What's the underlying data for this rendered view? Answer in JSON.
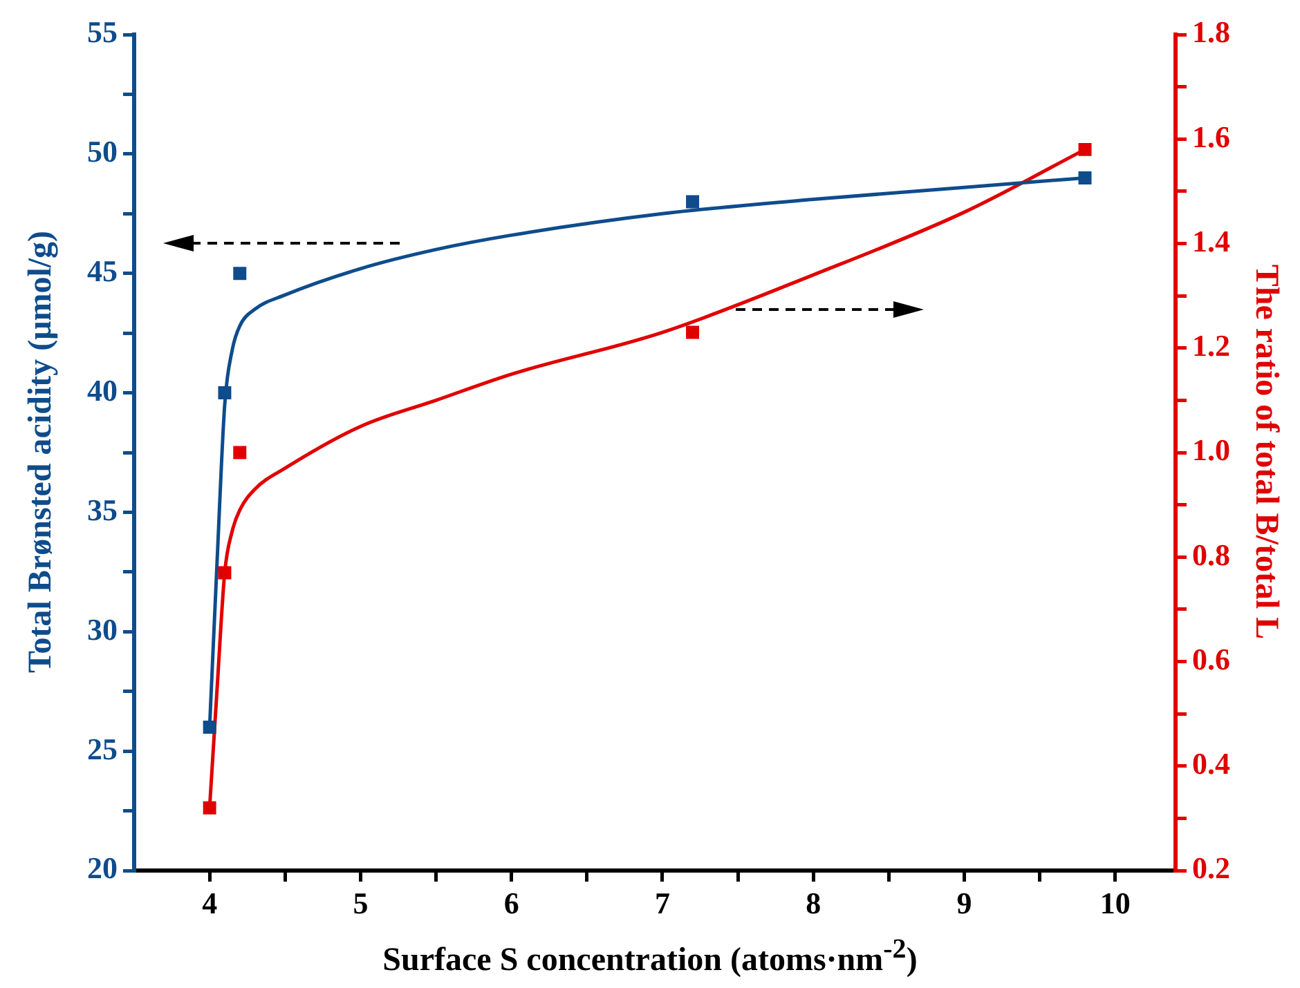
{
  "chart_data": {
    "type": "scatter",
    "xlabel": "Surface S concentration (atoms·nm$^{-2}$)",
    "ylabel": "Total Brønsted acidity (μmol/g)",
    "y2label": "The ratio of total B/total L",
    "xlim": [
      3.5,
      10.4
    ],
    "xticks": [
      4,
      {
        "value": 4.5,
        "label": null
      },
      5,
      {
        "value": 5.5,
        "label": null
      },
      6,
      {
        "value": 6.5,
        "label": null
      },
      7,
      {
        "value": 7.5,
        "label": null
      },
      8,
      {
        "value": 8.5,
        "label": null
      },
      9,
      {
        "value": 9.5,
        "label": null
      },
      10
    ],
    "ylim": [
      20,
      55
    ],
    "yticks": [
      20,
      {
        "value": 22.5,
        "label": null
      },
      25,
      {
        "value": 27.5,
        "label": null
      },
      30,
      {
        "value": 32.5,
        "label": null
      },
      35,
      {
        "value": 37.5,
        "label": null
      },
      40,
      {
        "value": 42.5,
        "label": null
      },
      45,
      {
        "value": 47.5,
        "label": null
      },
      50,
      {
        "value": 52.5,
        "label": null
      },
      55
    ],
    "y2lim": [
      0.2,
      1.8
    ],
    "y2ticks": [
      {
        "value": 0.2,
        "label": "0.2"
      },
      {
        "value": 0.3,
        "label": null
      },
      {
        "value": 0.4,
        "label": "0.4"
      },
      {
        "value": 0.5,
        "label": null
      },
      {
        "value": 0.6,
        "label": "0.6"
      },
      {
        "value": 0.7,
        "label": null
      },
      {
        "value": 0.8,
        "label": "0.8"
      },
      {
        "value": 0.9,
        "label": null
      },
      {
        "value": 1.0,
        "label": "1.0"
      },
      {
        "value": 1.1,
        "label": null
      },
      {
        "value": 1.2,
        "label": "1.2"
      },
      {
        "value": 1.3,
        "label": null
      },
      {
        "value": 1.4,
        "label": "1.4"
      },
      {
        "value": 1.5,
        "label": null
      },
      {
        "value": 1.6,
        "label": "1.6"
      },
      {
        "value": 1.7,
        "label": null
      },
      {
        "value": 1.8,
        "label": "1.8"
      }
    ],
    "marker": "square",
    "grid": false,
    "legend": false,
    "series": [
      {
        "color": "#0e4c8c",
        "x": [
          4,
          4.1,
          4.2,
          7.2,
          9.8
        ],
        "values": [
          26,
          40,
          45,
          48,
          49
        ]
      },
      {
        "color": "#e00000",
        "axis": "y2",
        "x": [
          4,
          4.1,
          4.2,
          7.2,
          9.8
        ],
        "values": [
          0.32,
          0.77,
          1.0,
          1.23,
          1.58
        ]
      },
      {
        "type": "line",
        "color": "#0e4c8c",
        "marker": "none",
        "x": [
          4,
          4.05,
          4.1,
          4.15,
          4.2,
          4.3,
          4.5,
          5,
          5.5,
          6,
          7,
          8,
          9,
          9.8
        ],
        "values": [
          26,
          33,
          39.5,
          41.8,
          42.8,
          43.5,
          44.1,
          45.2,
          46,
          46.6,
          47.5,
          48.1,
          48.6,
          49
        ]
      },
      {
        "type": "line",
        "color": "#e00000",
        "marker": "none",
        "axis": "y2",
        "x": [
          4,
          4.05,
          4.1,
          4.15,
          4.2,
          4.3,
          4.5,
          5,
          5.5,
          6,
          7,
          8,
          9,
          9.8
        ],
        "values": [
          0.32,
          0.55,
          0.77,
          0.85,
          0.89,
          0.93,
          0.97,
          1.05,
          1.1,
          1.15,
          1.23,
          1.34,
          1.46,
          1.58
        ]
      }
    ]
  }
}
